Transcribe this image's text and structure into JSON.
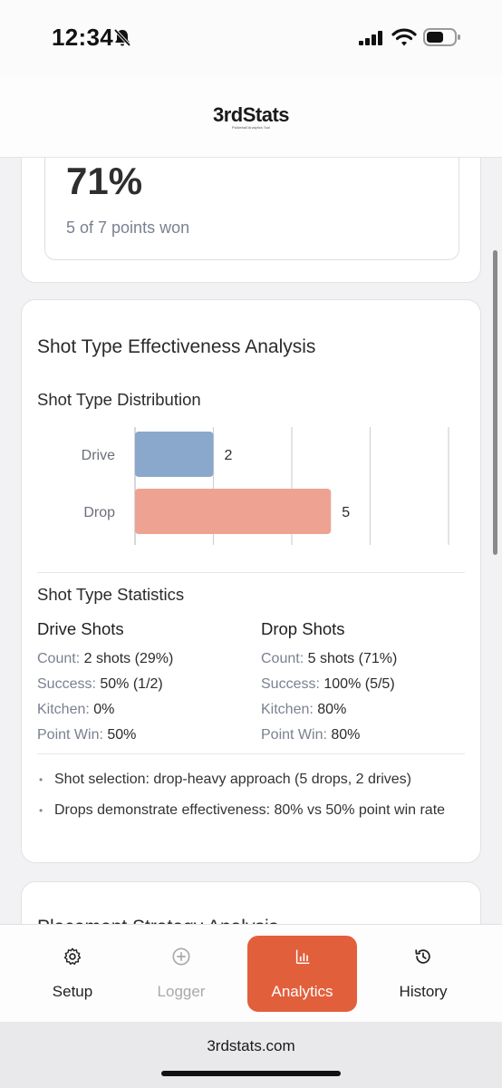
{
  "status_bar": {
    "time": "12:34"
  },
  "header": {
    "logo": "3rdStats",
    "tagline": "Pickleball Analytics Tool"
  },
  "summary_card": {
    "percent": "71%",
    "subtitle": "5 of 7 points won"
  },
  "shot_card": {
    "title": "Shot Type Effectiveness Analysis",
    "distribution_title": "Shot Type Distribution",
    "statistics_title": "Shot Type Statistics",
    "drive": {
      "title": "Drive Shots",
      "count_label": "Count:",
      "count_value": "2 shots (29%)",
      "success_label": "Success:",
      "success_value": "50% (1/2)",
      "kitchen_label": "Kitchen:",
      "kitchen_value": "0%",
      "pointwin_label": "Point Win:",
      "pointwin_value": "50%"
    },
    "drop": {
      "title": "Drop Shots",
      "count_label": "Count:",
      "count_value": "5 shots (71%)",
      "success_label": "Success:",
      "success_value": "100% (5/5)",
      "kitchen_label": "Kitchen:",
      "kitchen_value": "80%",
      "pointwin_label": "Point Win:",
      "pointwin_value": "80%"
    },
    "insights": [
      "Shot selection: drop-heavy approach (5 drops, 2 drives)",
      "Drops demonstrate effectiveness: 80% vs 50% point win rate"
    ]
  },
  "next_card": {
    "title": "Placement Strategy Analysis"
  },
  "chart_data": {
    "type": "bar",
    "orientation": "horizontal",
    "categories": [
      "Drive",
      "Drop"
    ],
    "values": [
      2,
      5
    ],
    "colors": [
      "#8aa8cb",
      "#eea392"
    ],
    "xlim": [
      0,
      8
    ],
    "grid": true
  },
  "tabs": [
    {
      "label": "Setup",
      "icon": "gear-icon",
      "active": false
    },
    {
      "label": "Logger",
      "icon": "plus-circle-icon",
      "active": false
    },
    {
      "label": "Analytics",
      "icon": "bar-chart-icon",
      "active": true
    },
    {
      "label": "History",
      "icon": "history-icon",
      "active": false
    }
  ],
  "url_bar": {
    "url": "3rdstats.com"
  }
}
